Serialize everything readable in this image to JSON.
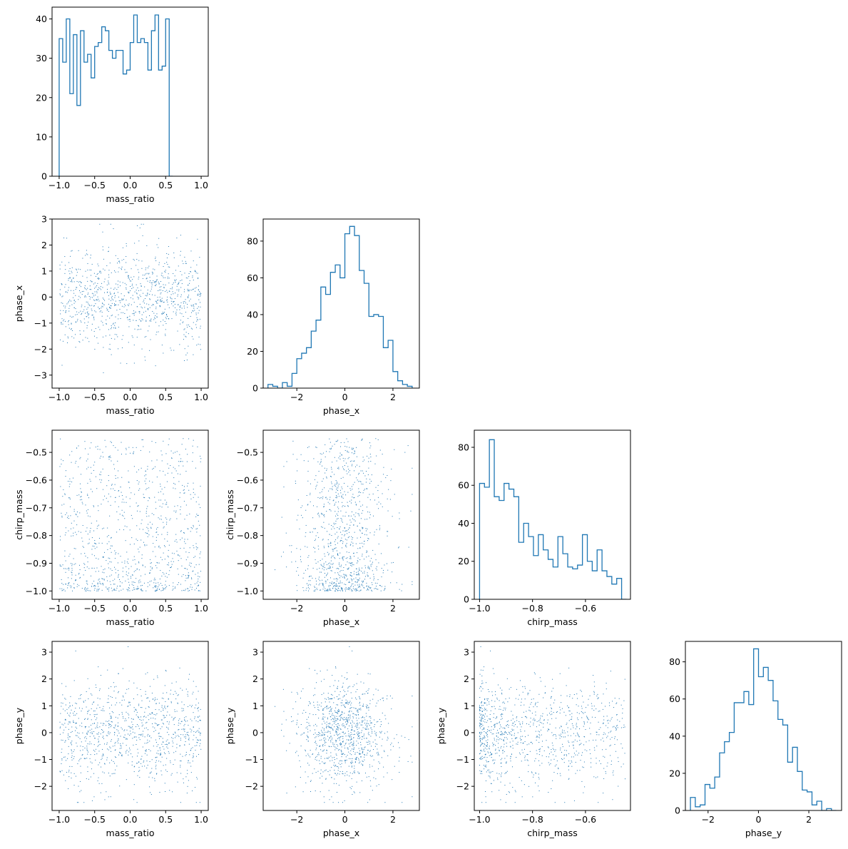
{
  "figure": {
    "type": "corner-plot",
    "variables": [
      "mass_ratio",
      "phase_x",
      "chirp_mass",
      "phase_y"
    ],
    "color": "#1f77b4",
    "axis_color": "#000000"
  },
  "chart_data": [
    {
      "id": "hist-mass_ratio",
      "type": "histogram",
      "row": 0,
      "col": 0,
      "xlabel": "mass_ratio",
      "ylabel": "",
      "xlim": [
        -1.1,
        1.1
      ],
      "ylim": [
        0,
        43
      ],
      "xticks": [
        -1.0,
        -0.5,
        0.0,
        0.5,
        1.0
      ],
      "xtick_labels": [
        "−1.0",
        "−0.5",
        "0.0",
        "0.5",
        "1.0"
      ],
      "yticks": [
        0,
        10,
        20,
        30,
        40
      ],
      "ytick_labels": [
        "0",
        "10",
        "20",
        "30",
        "40"
      ],
      "bin_edges": [
        -1.0,
        0.05
      ],
      "counts": [
        35,
        29,
        40,
        21,
        36,
        18,
        37,
        29,
        31,
        25,
        33,
        34,
        38,
        37,
        32,
        30,
        32,
        32,
        26,
        27,
        34,
        41,
        34,
        35,
        34,
        27,
        37,
        41,
        27,
        28,
        40,
        0
      ]
    },
    {
      "id": "scatter-mass_ratio-phase_x",
      "type": "scatter",
      "row": 1,
      "col": 0,
      "xlabel": "mass_ratio",
      "ylabel": "phase_x",
      "xvar": "mass_ratio",
      "yvar": "phase_x",
      "xlim": [
        -1.1,
        1.1
      ],
      "ylim": [
        -3.5,
        3.0
      ],
      "xticks": [
        -1.0,
        -0.5,
        0.0,
        0.5,
        1.0
      ],
      "xtick_labels": [
        "−1.0",
        "−0.5",
        "0.0",
        "0.5",
        "1.0"
      ],
      "yticks": [
        -3,
        -2,
        -1,
        0,
        1,
        2,
        3
      ],
      "ytick_labels": [
        "−3",
        "−2",
        "−1",
        "0",
        "1",
        "2",
        "3"
      ]
    },
    {
      "id": "hist-phase_x",
      "type": "histogram",
      "row": 1,
      "col": 1,
      "xlabel": "phase_x",
      "ylabel": "",
      "xlim": [
        -3.4,
        3.1
      ],
      "ylim": [
        0,
        92
      ],
      "xticks": [
        -2,
        0,
        2
      ],
      "xtick_labels": [
        "−2",
        "0",
        "2"
      ],
      "yticks": [
        0,
        20,
        40,
        60,
        80
      ],
      "ytick_labels": [
        "0",
        "20",
        "40",
        "60",
        "80"
      ],
      "bin_edges": [
        -3.2,
        0.2
      ],
      "counts": [
        2,
        1,
        0,
        3,
        1,
        8,
        16,
        19,
        22,
        31,
        37,
        55,
        51,
        63,
        67,
        60,
        84,
        88,
        83,
        64,
        57,
        39,
        40,
        39,
        22,
        26,
        9,
        4,
        2,
        1
      ]
    },
    {
      "id": "scatter-mass_ratio-chirp_mass",
      "type": "scatter",
      "row": 2,
      "col": 0,
      "xlabel": "mass_ratio",
      "ylabel": "chirp_mass",
      "xvar": "mass_ratio",
      "yvar": "chirp_mass",
      "xlim": [
        -1.1,
        1.1
      ],
      "ylim": [
        -1.03,
        -0.42
      ],
      "xticks": [
        -1.0,
        -0.5,
        0.0,
        0.5,
        1.0
      ],
      "xtick_labels": [
        "−1.0",
        "−0.5",
        "0.0",
        "0.5",
        "1.0"
      ],
      "yticks": [
        -1.0,
        -0.9,
        -0.8,
        -0.7,
        -0.6,
        -0.5
      ],
      "ytick_labels": [
        "−1.0",
        "−0.9",
        "−0.8",
        "−0.7",
        "−0.6",
        "−0.5"
      ]
    },
    {
      "id": "scatter-phase_x-chirp_mass",
      "type": "scatter",
      "row": 2,
      "col": 1,
      "xlabel": "phase_x",
      "ylabel": "chirp_mass",
      "xvar": "phase_x",
      "yvar": "chirp_mass",
      "xlim": [
        -3.4,
        3.1
      ],
      "ylim": [
        -1.03,
        -0.42
      ],
      "xticks": [
        -2,
        0,
        2
      ],
      "xtick_labels": [
        "−2",
        "0",
        "2"
      ],
      "yticks": [
        -1.0,
        -0.9,
        -0.8,
        -0.7,
        -0.6,
        -0.5
      ],
      "ytick_labels": [
        "−1.0",
        "−0.9",
        "−0.8",
        "−0.7",
        "−0.6",
        "−0.5"
      ]
    },
    {
      "id": "hist-chirp_mass",
      "type": "histogram",
      "row": 2,
      "col": 2,
      "xlabel": "chirp_mass",
      "ylabel": "",
      "xlim": [
        -1.02,
        -0.43
      ],
      "ylim": [
        0,
        89
      ],
      "xticks": [
        -1.0,
        -0.8,
        -0.6
      ],
      "xtick_labels": [
        "−1.0",
        "−0.8",
        "−0.6"
      ],
      "yticks": [
        0,
        20,
        40,
        60,
        80
      ],
      "ytick_labels": [
        "0",
        "20",
        "40",
        "60",
        "80"
      ],
      "bin_edges": [
        -1.0,
        0.0185
      ],
      "counts": [
        61,
        59,
        84,
        54,
        52,
        61,
        58,
        54,
        30,
        40,
        33,
        23,
        34,
        26,
        21,
        17,
        33,
        24,
        17,
        16,
        18,
        34,
        20,
        15,
        26,
        15,
        12,
        8,
        11,
        0
      ]
    },
    {
      "id": "scatter-mass_ratio-phase_y",
      "type": "scatter",
      "row": 3,
      "col": 0,
      "xlabel": "mass_ratio",
      "ylabel": "phase_y",
      "xvar": "mass_ratio",
      "yvar": "phase_y",
      "xlim": [
        -1.1,
        1.1
      ],
      "ylim": [
        -2.9,
        3.4
      ],
      "xticks": [
        -1.0,
        -0.5,
        0.0,
        0.5,
        1.0
      ],
      "xtick_labels": [
        "−1.0",
        "−0.5",
        "0.0",
        "0.5",
        "1.0"
      ],
      "yticks": [
        -2,
        -1,
        0,
        1,
        2,
        3
      ],
      "ytick_labels": [
        "−2",
        "−1",
        "0",
        "1",
        "2",
        "3"
      ]
    },
    {
      "id": "scatter-phase_x-phase_y",
      "type": "scatter",
      "row": 3,
      "col": 1,
      "xlabel": "phase_x",
      "ylabel": "phase_y",
      "xvar": "phase_x",
      "yvar": "phase_y",
      "xlim": [
        -3.4,
        3.1
      ],
      "ylim": [
        -2.9,
        3.4
      ],
      "xticks": [
        -2,
        0,
        2
      ],
      "xtick_labels": [
        "−2",
        "0",
        "2"
      ],
      "yticks": [
        -2,
        -1,
        0,
        1,
        2,
        3
      ],
      "ytick_labels": [
        "−2",
        "−1",
        "0",
        "1",
        "2",
        "3"
      ]
    },
    {
      "id": "scatter-chirp_mass-phase_y",
      "type": "scatter",
      "row": 3,
      "col": 2,
      "xlabel": "chirp_mass",
      "ylabel": "phase_y",
      "xvar": "chirp_mass",
      "yvar": "phase_y",
      "xlim": [
        -1.02,
        -0.43
      ],
      "ylim": [
        -2.9,
        3.4
      ],
      "xticks": [
        -1.0,
        -0.8,
        -0.6
      ],
      "xtick_labels": [
        "−1.0",
        "−0.8",
        "−0.6"
      ],
      "yticks": [
        -2,
        -1,
        0,
        1,
        2,
        3
      ],
      "ytick_labels": [
        "−2",
        "−1",
        "0",
        "1",
        "2",
        "3"
      ]
    },
    {
      "id": "hist-phase_y",
      "type": "histogram",
      "row": 3,
      "col": 3,
      "xlabel": "phase_y",
      "ylabel": "",
      "xlim": [
        -2.9,
        3.3
      ],
      "ylim": [
        0,
        91
      ],
      "xticks": [
        -2,
        0,
        2
      ],
      "xtick_labels": [
        "−2",
        "0",
        "2"
      ],
      "yticks": [
        0,
        20,
        40,
        60,
        80
      ],
      "ytick_labels": [
        "0",
        "20",
        "40",
        "60",
        "80"
      ],
      "bin_edges": [
        -2.7,
        0.193
      ],
      "counts": [
        7,
        2,
        3,
        14,
        12,
        18,
        31,
        37,
        42,
        58,
        58,
        64,
        57,
        87,
        72,
        77,
        70,
        59,
        49,
        46,
        26,
        34,
        21,
        11,
        10,
        3,
        5,
        0,
        1,
        0
      ]
    }
  ]
}
